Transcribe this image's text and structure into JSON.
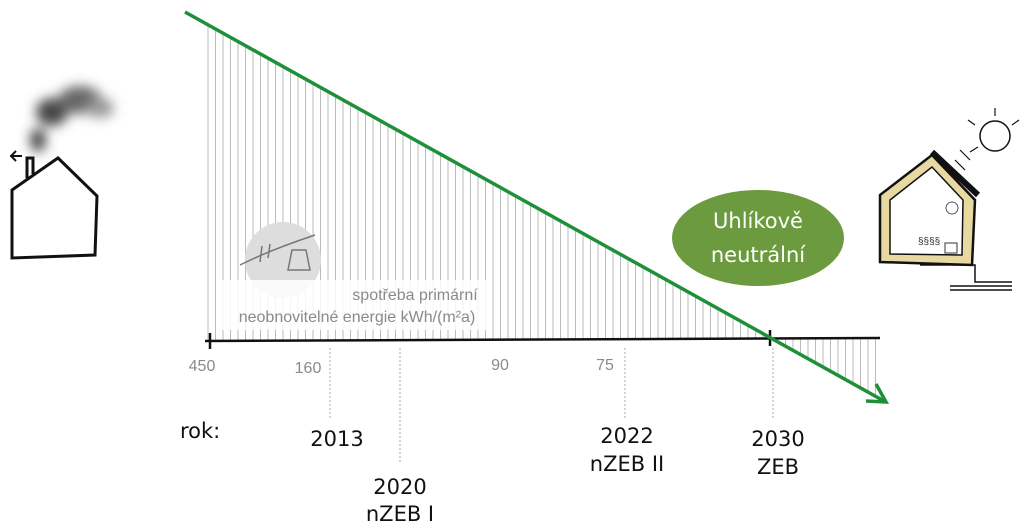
{
  "axis_labels": [
    "450",
    "160",
    "90",
    "75"
  ],
  "consumption_label": {
    "line1": "spotřeba primární",
    "line2": "neobnovitelné energie kWh/(m²a)"
  },
  "year_prefix": "rok:",
  "milestones": [
    {
      "year": "2013"
    },
    {
      "year": "2020",
      "standard": "nZEB I"
    },
    {
      "year": "2022",
      "standard": "nZEB II"
    },
    {
      "year": "2030",
      "standard": "ZEB"
    }
  ],
  "badge": {
    "line1": "Uhlíkově",
    "line2": "neutrální"
  }
}
